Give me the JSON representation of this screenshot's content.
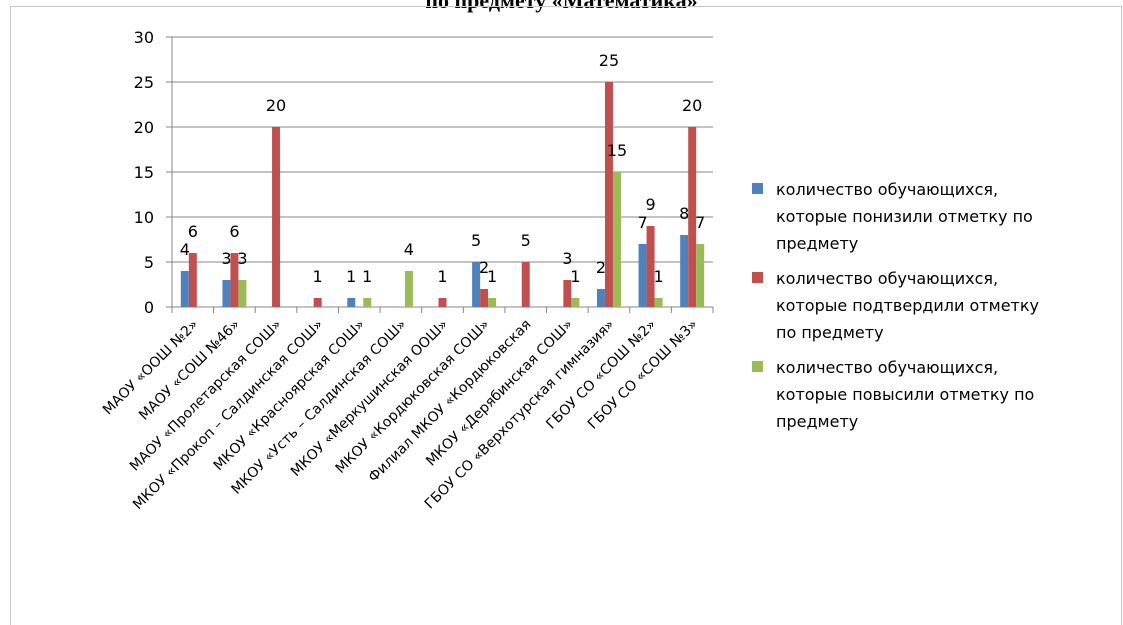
{
  "page": {
    "title": "по предмету «Математика»"
  },
  "colors": {
    "series1": "#4F81BD",
    "series2": "#C0504D",
    "series3": "#9BBB59",
    "grid": "#878787",
    "axis": "#878787"
  },
  "chart_data": {
    "type": "bar",
    "title": "",
    "xlabel": "",
    "ylabel": "",
    "ylim": [
      0,
      30
    ],
    "yticks": [
      0,
      5,
      10,
      15,
      20,
      25,
      30
    ],
    "grid": true,
    "legend_position": "right",
    "categories": [
      "МАОУ «ООШ №2»",
      "МАОУ «СОШ №46»",
      "МАОУ «Пролетарская СОШ»",
      "МКОУ «Прокоп – Салдинская СОШ»",
      "МКОУ «Красноярская СОШ»",
      "МКОУ «Усть – Салдинская СОШ»",
      "МКОУ «Меркушинская ООШ»",
      "МКОУ «Кордюковская СОШ»",
      "Филиал МКОУ «Кордюковская",
      "МКОУ «Дерябинская СОШ»",
      "ГБОУ СО «Верхотурская гимназия»",
      "ГБОУ СО «СОШ №2»",
      "ГБОУ СО «СОШ №3»"
    ],
    "series": [
      {
        "name": "количество обучающихся, которые понизили отметку по предмету",
        "values": [
          4,
          3,
          0,
          0,
          1,
          0,
          0,
          5,
          0,
          0,
          2,
          7,
          8
        ],
        "labels": [
          "4",
          "3",
          "",
          "",
          "1",
          "",
          "",
          "5",
          "",
          "",
          "2",
          "7",
          "8"
        ]
      },
      {
        "name": "количество обучающихся, которые подтвердили отметку по предмету",
        "values": [
          6,
          6,
          20,
          1,
          0,
          0,
          1,
          2,
          5,
          3,
          25,
          9,
          20
        ],
        "labels": [
          "6",
          "6",
          "20",
          "1",
          "",
          "",
          "1",
          "2",
          "5",
          "3",
          "25",
          "9",
          "20"
        ]
      },
      {
        "name": "количество обучающихся, которые повысили отметку по предмету",
        "values": [
          0,
          3,
          0,
          0,
          1,
          4,
          0,
          1,
          0,
          1,
          15,
          1,
          7
        ],
        "labels": [
          "",
          "3",
          "",
          "",
          "1",
          "4",
          "",
          "1",
          "",
          "1",
          "15",
          "1",
          "7"
        ]
      }
    ]
  },
  "legend": {
    "items": [
      {
        "text_lines": [
          "количество обучающихся,",
          "которые понизили отметку по",
          "предмету"
        ]
      },
      {
        "text_lines": [
          "количество обучающихся,",
          "которые подтвердили отметку",
          "по предмету"
        ]
      },
      {
        "text_lines": [
          "количество обучающихся,",
          "которые повысили отметку по",
          "предмету"
        ]
      }
    ]
  }
}
